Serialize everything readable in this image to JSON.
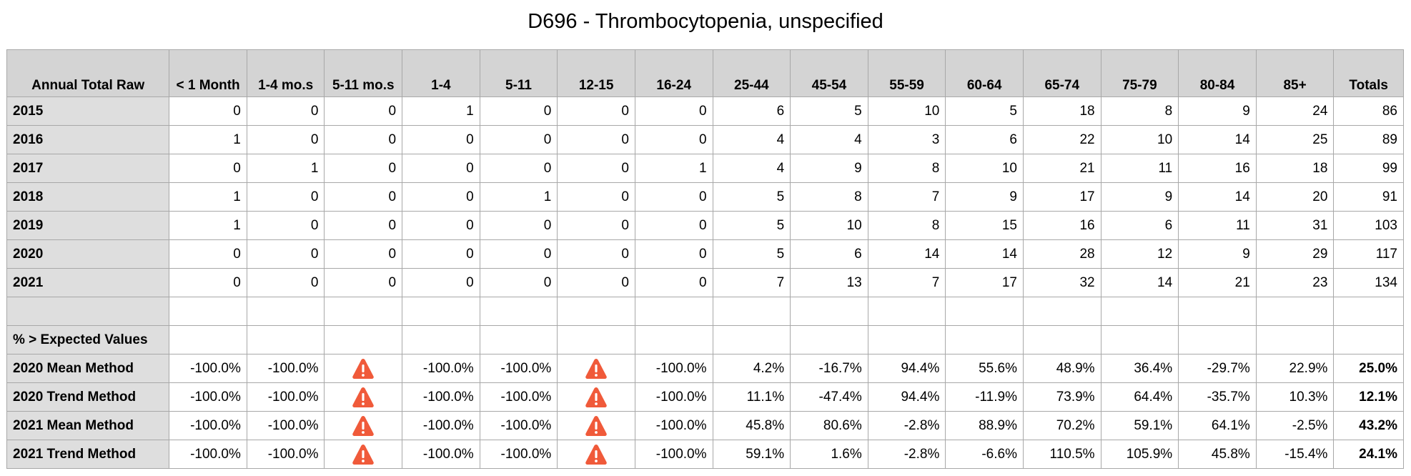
{
  "title": "D696 - Thrombocytopenia, unspecified",
  "header": [
    "Annual Total Raw",
    "< 1 Month",
    "1-4 mo.s",
    "5-11 mo.s",
    "1-4",
    "5-11",
    "12-15",
    "16-24",
    "25-44",
    "45-54",
    "55-59",
    "60-64",
    "65-74",
    "75-79",
    "80-84",
    "85+",
    "Totals"
  ],
  "raw_rows": [
    {
      "label": "2015",
      "values": [
        "0",
        "0",
        "0",
        "1",
        "0",
        "0",
        "0",
        "6",
        "5",
        "10",
        "5",
        "18",
        "8",
        "9",
        "24",
        "86"
      ]
    },
    {
      "label": "2016",
      "values": [
        "1",
        "0",
        "0",
        "0",
        "0",
        "0",
        "0",
        "4",
        "4",
        "3",
        "6",
        "22",
        "10",
        "14",
        "25",
        "89"
      ]
    },
    {
      "label": "2017",
      "values": [
        "0",
        "1",
        "0",
        "0",
        "0",
        "0",
        "1",
        "4",
        "9",
        "8",
        "10",
        "21",
        "11",
        "16",
        "18",
        "99"
      ]
    },
    {
      "label": "2018",
      "values": [
        "1",
        "0",
        "0",
        "0",
        "1",
        "0",
        "0",
        "5",
        "8",
        "7",
        "9",
        "17",
        "9",
        "14",
        "20",
        "91"
      ]
    },
    {
      "label": "2019",
      "values": [
        "1",
        "0",
        "0",
        "0",
        "0",
        "0",
        "0",
        "5",
        "10",
        "8",
        "15",
        "16",
        "6",
        "11",
        "31",
        "103"
      ]
    },
    {
      "label": "2020",
      "values": [
        "0",
        "0",
        "0",
        "0",
        "0",
        "0",
        "0",
        "5",
        "6",
        "14",
        "14",
        "28",
        "12",
        "9",
        "29",
        "117"
      ]
    },
    {
      "label": "2021",
      "values": [
        "0",
        "0",
        "0",
        "0",
        "0",
        "0",
        "0",
        "7",
        "13",
        "7",
        "17",
        "32",
        "14",
        "21",
        "23",
        "134"
      ]
    }
  ],
  "expected_section_label": "% > Expected Values",
  "warning_icon": "warning-triangle-icon",
  "warning_color": "#f05a3a",
  "pct_rows": [
    {
      "label": "2020 Mean Method",
      "values": [
        "-100.0%",
        "-100.0%",
        "!",
        "-100.0%",
        "-100.0%",
        "!",
        "-100.0%",
        "4.2%",
        "-16.7%",
        "94.4%",
        "55.6%",
        "48.9%",
        "36.4%",
        "-29.7%",
        "22.9%",
        "25.0%"
      ]
    },
    {
      "label": "2020 Trend Method",
      "values": [
        "-100.0%",
        "-100.0%",
        "!",
        "-100.0%",
        "-100.0%",
        "!",
        "-100.0%",
        "11.1%",
        "-47.4%",
        "94.4%",
        "-11.9%",
        "73.9%",
        "64.4%",
        "-35.7%",
        "10.3%",
        "12.1%"
      ]
    },
    {
      "label": "2021 Mean Method",
      "values": [
        "-100.0%",
        "-100.0%",
        "!",
        "-100.0%",
        "-100.0%",
        "!",
        "-100.0%",
        "45.8%",
        "80.6%",
        "-2.8%",
        "88.9%",
        "70.2%",
        "59.1%",
        "64.1%",
        "-2.5%",
        "43.2%"
      ]
    },
    {
      "label": "2021 Trend Method",
      "values": [
        "-100.0%",
        "-100.0%",
        "!",
        "-100.0%",
        "-100.0%",
        "!",
        "-100.0%",
        "59.1%",
        "1.6%",
        "-2.8%",
        "-6.6%",
        "110.5%",
        "105.9%",
        "45.8%",
        "-15.4%",
        "24.1%"
      ]
    }
  ]
}
